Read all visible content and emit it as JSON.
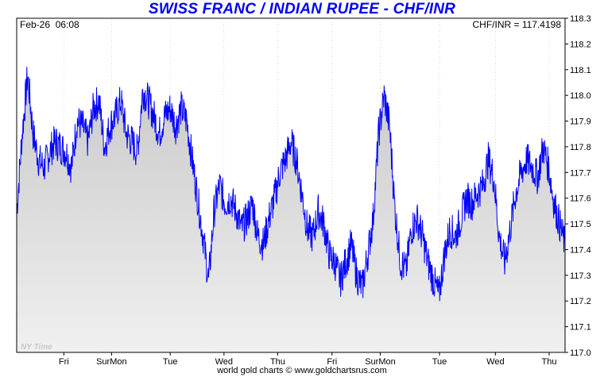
{
  "header": {
    "title": "SWISS FRANC / INDIAN RUPEE - CHF/INR",
    "title_color": "#0000ff",
    "timestamp": "Feb-26  06:08",
    "current_quote": "CHF/INR = 117.4198"
  },
  "watermark": "NY Time",
  "footer": "world gold charts © www.goldchartsrus.com",
  "colors": {
    "line": "#0000ff",
    "area_top": "#c8c8c8",
    "area_bottom": "#f0f0f0",
    "gridline": "#bbbbbb"
  },
  "chart_data": {
    "type": "area",
    "title": "SWISS FRANC / INDIAN RUPEE - CHF/INR",
    "ylabel": "",
    "xlabel": "",
    "ylim": [
      117.0,
      118.3
    ],
    "xlim": [
      0,
      100
    ],
    "y_ticks": [
      "117.0",
      "117.1",
      "117.2",
      "117.3",
      "117.4",
      "117.5",
      "117.6",
      "117.7",
      "117.8",
      "117.9",
      "118.0",
      "118.1",
      "118.2",
      "118.3"
    ],
    "x_ticks": [
      {
        "label": "Fri",
        "x": 8.6
      },
      {
        "label": "SurMon",
        "x": 17.3
      },
      {
        "label": "Tue",
        "x": 28.0
      },
      {
        "label": "Wed",
        "x": 37.8
      },
      {
        "label": "Thu",
        "x": 47.6
      },
      {
        "label": "Fri",
        "x": 57.5
      },
      {
        "label": "SurMon",
        "x": 66.3
      },
      {
        "label": "Tue",
        "x": 77.1
      },
      {
        "label": "Wed",
        "x": 87.3
      },
      {
        "label": "Thu",
        "x": 97.1
      }
    ],
    "grid": true,
    "series": [
      {
        "name": "",
        "x": [
          0,
          1,
          2,
          3,
          4,
          5,
          6,
          7,
          8,
          9,
          10,
          11,
          12,
          13,
          14,
          15,
          16,
          17,
          18,
          19,
          20,
          21,
          22,
          23,
          24,
          25,
          26,
          27,
          28,
          29,
          30,
          31,
          32,
          33,
          34,
          35,
          36,
          37,
          38,
          39,
          40,
          41,
          42,
          43,
          44,
          45,
          46,
          47,
          48,
          49,
          50,
          51,
          52,
          53,
          54,
          55,
          56,
          57,
          58,
          59,
          60,
          61,
          62,
          63,
          64,
          65,
          66,
          67,
          68,
          69,
          70,
          71,
          72,
          73,
          74,
          75,
          76,
          77,
          78,
          79,
          80,
          81,
          82,
          83,
          84,
          85,
          86,
          87,
          88,
          89,
          90,
          91,
          92,
          93,
          94,
          95,
          96,
          97,
          98,
          99,
          100
        ],
        "values": [
          117.55,
          117.85,
          118.08,
          117.85,
          117.75,
          117.72,
          117.78,
          117.82,
          117.8,
          117.78,
          117.72,
          117.9,
          117.88,
          117.82,
          117.95,
          117.98,
          117.8,
          117.88,
          117.92,
          117.98,
          117.85,
          117.82,
          117.78,
          118.02,
          117.98,
          117.92,
          117.85,
          117.92,
          117.95,
          117.88,
          117.95,
          117.9,
          117.75,
          117.6,
          117.45,
          117.28,
          117.55,
          117.65,
          117.58,
          117.6,
          117.55,
          117.48,
          117.52,
          117.58,
          117.45,
          117.42,
          117.52,
          117.6,
          117.7,
          117.75,
          117.82,
          117.75,
          117.62,
          117.48,
          117.45,
          117.55,
          117.5,
          117.38,
          117.35,
          117.28,
          117.35,
          117.42,
          117.3,
          117.25,
          117.38,
          117.52,
          117.85,
          118.0,
          117.88,
          117.55,
          117.35,
          117.32,
          117.48,
          117.52,
          117.45,
          117.35,
          117.28,
          117.22,
          117.38,
          117.48,
          117.45,
          117.52,
          117.6,
          117.58,
          117.62,
          117.65,
          117.75,
          117.68,
          117.45,
          117.35,
          117.48,
          117.62,
          117.7,
          117.75,
          117.72,
          117.68,
          117.8,
          117.72,
          117.58,
          117.5,
          117.42
        ]
      }
    ]
  }
}
